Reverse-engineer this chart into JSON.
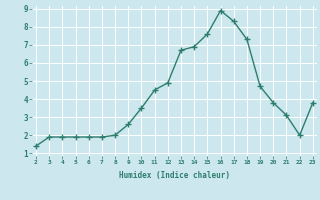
{
  "x": [
    2,
    3,
    4,
    5,
    6,
    7,
    8,
    9,
    10,
    11,
    12,
    13,
    14,
    15,
    16,
    17,
    18,
    19,
    20,
    21,
    22,
    23
  ],
  "y": [
    1.4,
    1.9,
    1.9,
    1.9,
    1.9,
    1.9,
    2.0,
    2.6,
    3.5,
    4.5,
    4.9,
    6.7,
    6.9,
    7.6,
    8.9,
    8.3,
    7.3,
    4.7,
    3.8,
    3.1,
    2.0,
    3.8
  ],
  "xlabel": "Humidex (Indice chaleur)",
  "ylim": [
    1,
    9
  ],
  "xlim": [
    2,
    23
  ],
  "yticks": [
    1,
    2,
    3,
    4,
    5,
    6,
    7,
    8,
    9
  ],
  "xticks": [
    2,
    3,
    4,
    5,
    6,
    7,
    8,
    9,
    10,
    11,
    12,
    13,
    14,
    15,
    16,
    17,
    18,
    19,
    20,
    21,
    22,
    23
  ],
  "line_color": "#2e7d6e",
  "marker": "+",
  "bg_color": "#cce8ee",
  "grid_color": "#ffffff",
  "font_family": "monospace",
  "tick_color": "#2e7d6e"
}
